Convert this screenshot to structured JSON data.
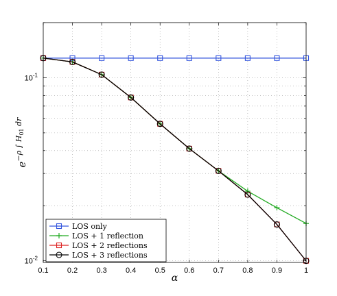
{
  "chart_data": {
    "type": "line",
    "title": "",
    "xlabel": "α",
    "ylabel": "e^{−ρ ∫ H01 dr}",
    "ylabel_parts": {
      "base": "e",
      "exponent_lead": "−ρ ∫ ",
      "H": "H",
      "sub": "01",
      "tail": " dr"
    },
    "x": [
      0.1,
      0.2,
      0.3,
      0.4,
      0.5,
      0.6,
      0.7,
      0.8,
      0.9,
      1
    ],
    "xlim": [
      0.1,
      1
    ],
    "ylim": [
      0.0098,
      0.2
    ],
    "yscale": "log",
    "x_tick_labels": [
      "0.1",
      "0.2",
      "0.3",
      "0.4",
      "0.5",
      "0.6",
      "0.7",
      "0.8",
      "0.9",
      "1"
    ],
    "y_major_ticks": [
      {
        "value": 0.01,
        "base": "10",
        "exp": "-2"
      },
      {
        "value": 0.1,
        "base": "10",
        "exp": "-1"
      }
    ],
    "grid": true,
    "legend_position": "bottom-left",
    "series": [
      {
        "name": "LOS only",
        "color": "#3355dd",
        "marker": "square",
        "values": [
          0.128,
          0.128,
          0.128,
          0.128,
          0.128,
          0.128,
          0.128,
          0.128,
          0.128,
          0.128
        ]
      },
      {
        "name": "LOS + 1 reflection",
        "color": "#22aa22",
        "marker": "plus",
        "values": [
          0.128,
          0.122,
          0.104,
          0.078,
          0.056,
          0.041,
          0.031,
          0.024,
          0.0195,
          0.016
        ]
      },
      {
        "name": "LOS + 2 reflections",
        "color": "#dd2222",
        "marker": "square",
        "values": [
          0.128,
          0.122,
          0.104,
          0.078,
          0.056,
          0.041,
          0.031,
          0.023,
          0.0158,
          0.01
        ]
      },
      {
        "name": "LOS + 3 reflections",
        "color": "#000000",
        "marker": "circle",
        "values": [
          0.128,
          0.122,
          0.104,
          0.078,
          0.056,
          0.041,
          0.031,
          0.023,
          0.0158,
          0.01
        ]
      }
    ]
  }
}
